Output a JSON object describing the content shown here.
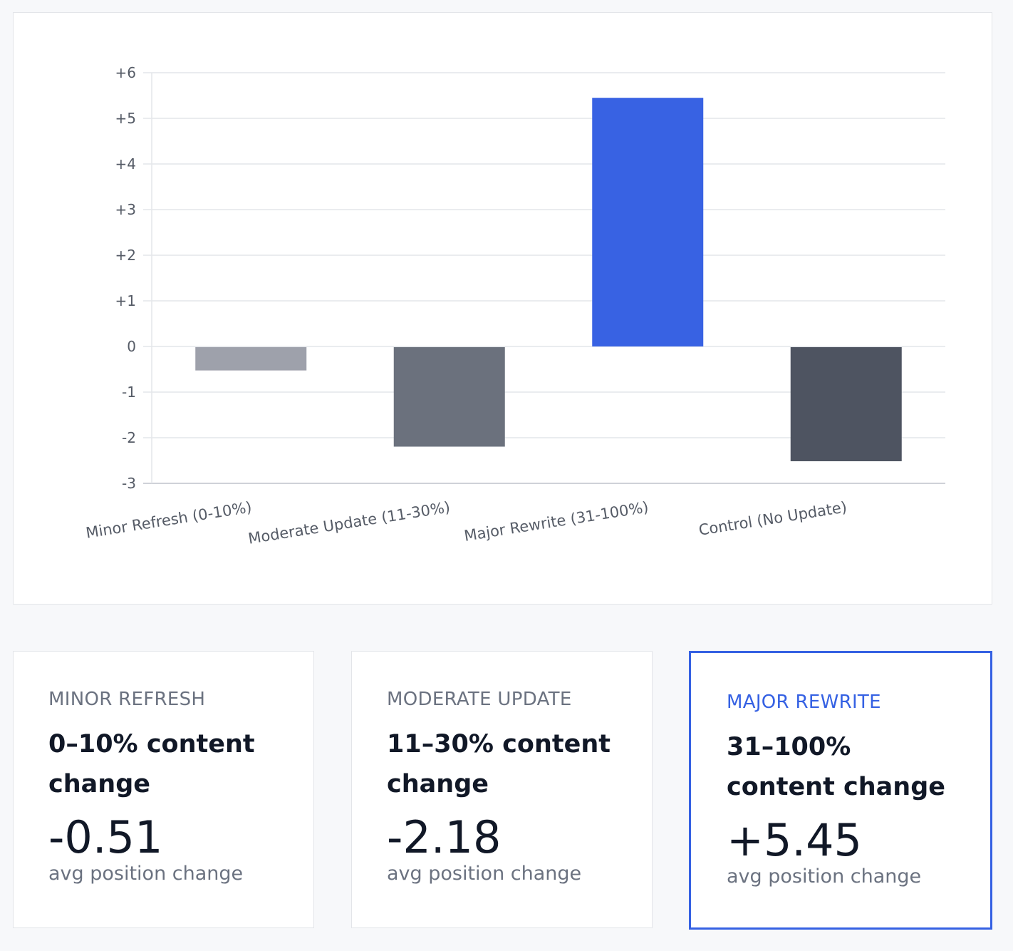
{
  "chart_data": {
    "type": "bar",
    "categories": [
      "Minor Refresh (0-10%)",
      "Moderate Update (11-30%)",
      "Major Rewrite (31-100%)",
      "Control (No Update)"
    ],
    "values": [
      -0.51,
      -2.18,
      5.45,
      -2.5
    ],
    "colors": [
      "#9ea1ab",
      "#6b717d",
      "#3862e3",
      "#4e5461"
    ],
    "ylim": [
      -3,
      6
    ],
    "yticks": [
      "-3",
      "-2",
      "-1",
      "0",
      "+1",
      "+2",
      "+3",
      "+4",
      "+5",
      "+6"
    ],
    "grid": true,
    "xlabel": "",
    "ylabel": "",
    "title": ""
  },
  "cards": [
    {
      "label": "MINOR REFRESH",
      "desc": "0–10% content change",
      "value": "-0.51",
      "sub": "avg position change"
    },
    {
      "label": "MODERATE UPDATE",
      "desc": "11–30% content change",
      "value": "-2.18",
      "sub": "avg position change"
    },
    {
      "label": "MAJOR REWRITE",
      "desc": "31–100% content change",
      "value": "+5.45",
      "sub": "avg position change",
      "highlighted": true
    }
  ]
}
